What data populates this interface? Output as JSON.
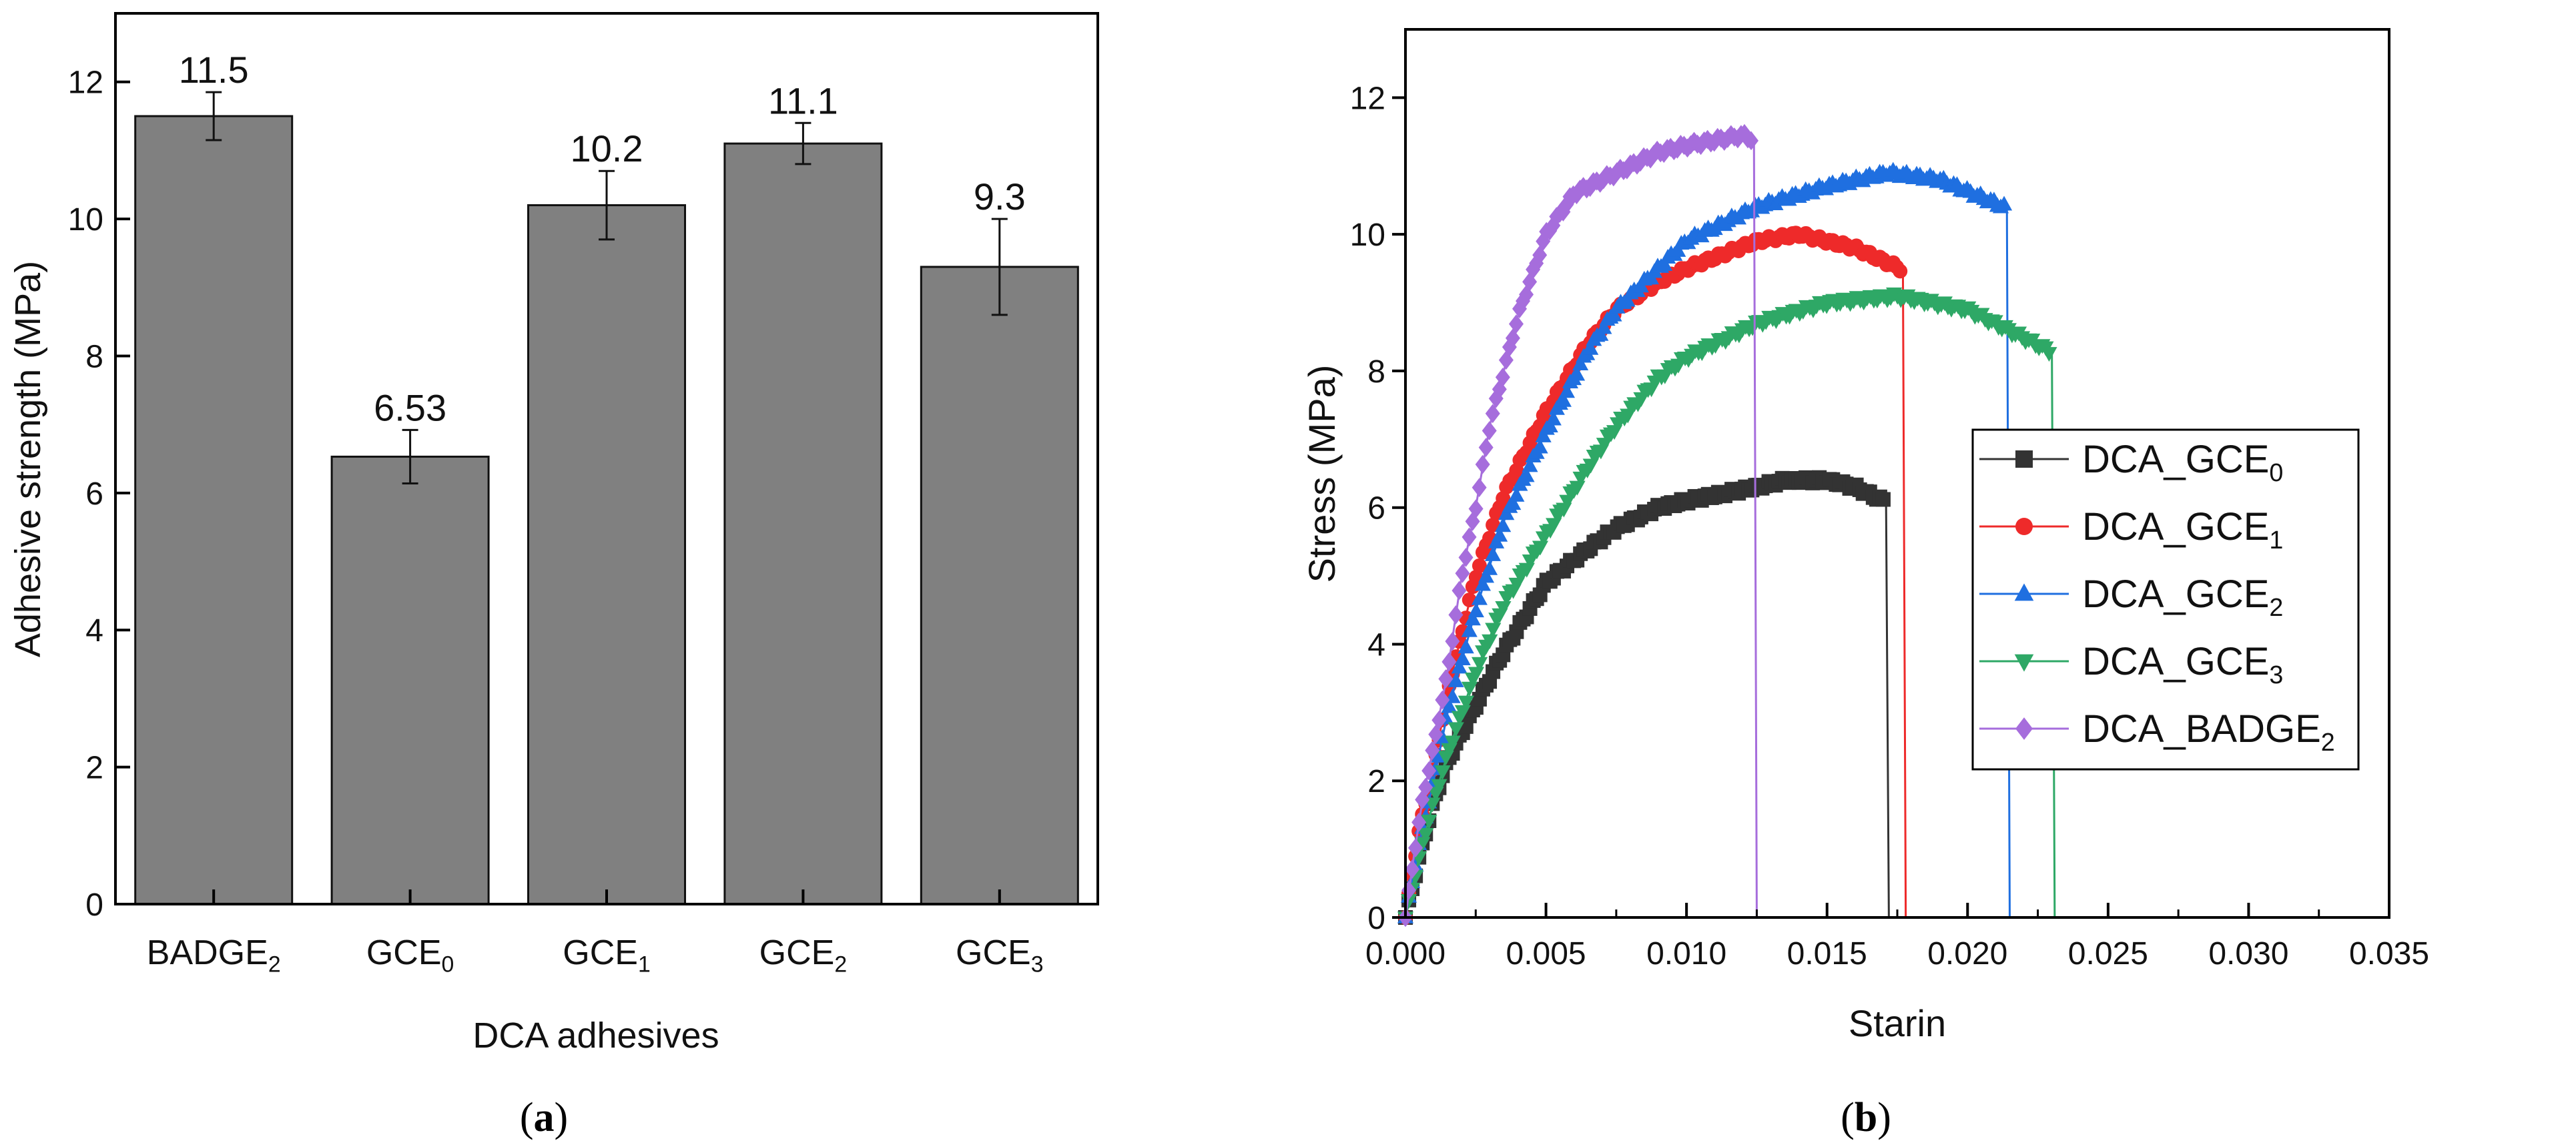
{
  "chart_data": [
    {
      "type": "bar",
      "panel_caption": "a",
      "xlabel": "DCA adhesives",
      "ylabel": "Adhesive strength (MPa)",
      "ylim": [
        0,
        13
      ],
      "yticks": [
        0,
        2,
        4,
        6,
        8,
        10,
        12
      ],
      "categories": [
        {
          "base": "BADGE",
          "sub": "2"
        },
        {
          "base": "GCE",
          "sub": "0"
        },
        {
          "base": "GCE",
          "sub": "1"
        },
        {
          "base": "GCE",
          "sub": "2"
        },
        {
          "base": "GCE",
          "sub": "3"
        }
      ],
      "values": [
        11.5,
        6.53,
        10.2,
        11.1,
        9.3
      ],
      "value_labels": [
        "11.5",
        "6.53",
        "10.2",
        "11.1",
        "9.3"
      ],
      "errors": [
        0.35,
        0.39,
        0.5,
        0.3,
        0.7
      ],
      "bar_color": "#808080",
      "grid": false
    },
    {
      "type": "line",
      "panel_caption": "b",
      "xlabel": "Starin",
      "ylabel": "Stress (MPa)",
      "xlim": [
        0,
        0.035
      ],
      "ylim": [
        0,
        13
      ],
      "xticks": [
        "0.000",
        "0.005",
        "0.010",
        "0.015",
        "0.020",
        "0.025",
        "0.030",
        "0.035"
      ],
      "yticks": [
        0,
        2,
        4,
        6,
        8,
        10,
        12
      ],
      "legend_position": "center-right",
      "grid": false,
      "series": [
        {
          "name": {
            "base": "DCA_GCE",
            "sub": "0"
          },
          "color": "#333333",
          "marker": "square",
          "x": [
            0,
            0.0005,
            0.001,
            0.0015,
            0.0025,
            0.0035,
            0.005,
            0.0065,
            0.0075,
            0.009,
            0.01,
            0.0125,
            0.0135,
            0.015,
            0.016,
            0.017
          ],
          "y": [
            0,
            0.9,
            1.7,
            2.3,
            3.1,
            3.9,
            4.9,
            5.4,
            5.7,
            6.0,
            6.1,
            6.3,
            6.4,
            6.4,
            6.3,
            6.1
          ],
          "break_x": 0.0171
        },
        {
          "name": {
            "base": "DCA_GCE",
            "sub": "1"
          },
          "color": "#ee2a2a",
          "marker": "circle",
          "x": [
            0,
            0.0005,
            0.001,
            0.0015,
            0.0025,
            0.0035,
            0.005,
            0.0065,
            0.0075,
            0.009,
            0.01,
            0.0125,
            0.014,
            0.016,
            0.0176
          ],
          "y": [
            0,
            1.3,
            2.2,
            3.3,
            5.0,
            6.2,
            7.4,
            8.4,
            8.9,
            9.3,
            9.5,
            9.9,
            10.0,
            9.8,
            9.5
          ],
          "break_x": 0.0177
        },
        {
          "name": {
            "base": "DCA_GCE",
            "sub": "2"
          },
          "color": "#1f6fe0",
          "marker": "triangle-up",
          "x": [
            0,
            0.0005,
            0.001,
            0.0015,
            0.0025,
            0.0035,
            0.005,
            0.0065,
            0.0075,
            0.009,
            0.01,
            0.0125,
            0.015,
            0.0172,
            0.019,
            0.0213
          ],
          "y": [
            0,
            1.1,
            2.0,
            3.0,
            4.5,
            5.8,
            7.1,
            8.3,
            8.9,
            9.5,
            9.9,
            10.4,
            10.7,
            10.9,
            10.8,
            10.4
          ],
          "break_x": 0.0214
        },
        {
          "name": {
            "base": "DCA_GCE",
            "sub": "3"
          },
          "color": "#2ea866",
          "marker": "triangle-down",
          "x": [
            0,
            0.0005,
            0.001,
            0.0015,
            0.0025,
            0.0035,
            0.005,
            0.0065,
            0.0075,
            0.009,
            0.01,
            0.0125,
            0.015,
            0.0175,
            0.02,
            0.0229
          ],
          "y": [
            0,
            0.9,
            1.7,
            2.4,
            3.6,
            4.6,
            5.6,
            6.6,
            7.2,
            7.9,
            8.2,
            8.7,
            9.0,
            9.1,
            8.9,
            8.3
          ],
          "break_x": 0.023
        },
        {
          "name": {
            "base": "DCA_BADGE",
            "sub": "2"
          },
          "color": "#a66ddc",
          "marker": "diamond",
          "x": [
            0,
            0.0003,
            0.0006,
            0.001,
            0.0015,
            0.002,
            0.0025,
            0.003,
            0.004,
            0.005,
            0.006,
            0.0075,
            0.009,
            0.01,
            0.012,
            0.0123
          ],
          "y": [
            0,
            0.9,
            1.7,
            2.5,
            3.6,
            5.0,
            6.0,
            7.2,
            8.8,
            10.0,
            10.6,
            10.9,
            11.2,
            11.3,
            11.45,
            11.4
          ],
          "break_x": 0.0124
        }
      ]
    }
  ]
}
